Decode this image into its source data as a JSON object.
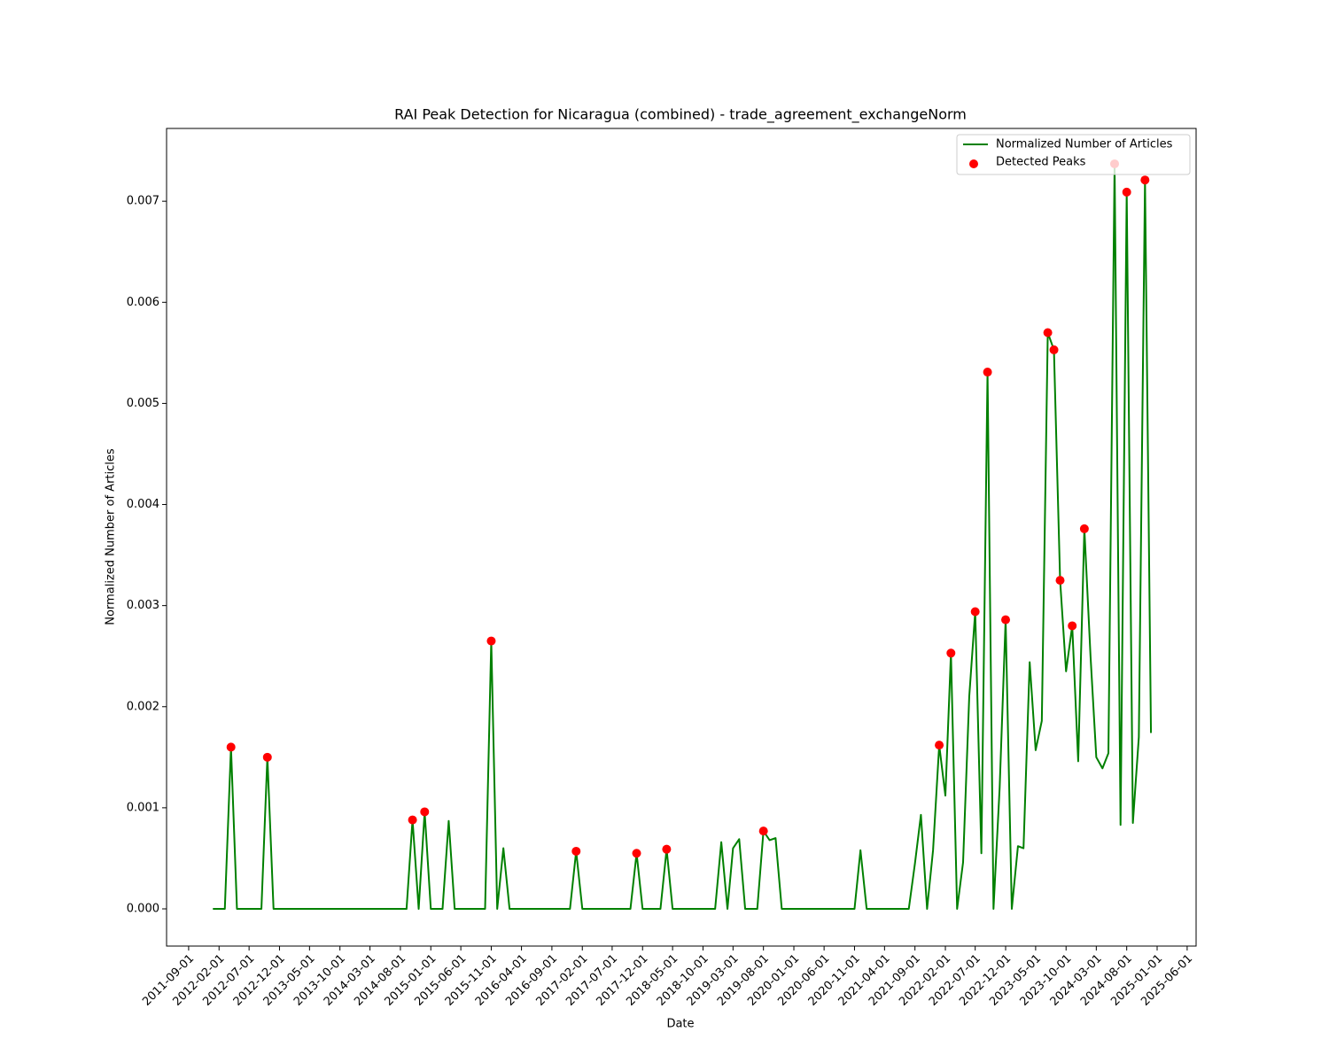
{
  "chart_data": {
    "type": "line",
    "title": "RAI Peak Detection for Nicaragua (combined) - trade_agreement_exchangeNorm",
    "x_label": "Date",
    "y_label": "Normalized Number of Articles",
    "x": [
      "2012-01-01",
      "2012-02-01",
      "2012-03-01",
      "2012-04-01",
      "2012-05-01",
      "2012-06-01",
      "2012-07-01",
      "2012-08-01",
      "2012-09-01",
      "2012-10-01",
      "2012-11-01",
      "2012-12-01",
      "2013-01-01",
      "2013-02-01",
      "2013-03-01",
      "2013-04-01",
      "2013-05-01",
      "2013-06-01",
      "2013-07-01",
      "2013-08-01",
      "2013-09-01",
      "2013-10-01",
      "2013-11-01",
      "2013-12-01",
      "2014-01-01",
      "2014-02-01",
      "2014-03-01",
      "2014-04-01",
      "2014-05-01",
      "2014-06-01",
      "2014-07-01",
      "2014-08-01",
      "2014-09-01",
      "2014-10-01",
      "2014-11-01",
      "2014-12-01",
      "2015-01-01",
      "2015-02-01",
      "2015-03-01",
      "2015-04-01",
      "2015-05-01",
      "2015-06-01",
      "2015-07-01",
      "2015-08-01",
      "2015-09-01",
      "2015-10-01",
      "2015-11-01",
      "2015-12-01",
      "2016-01-01",
      "2016-02-01",
      "2016-03-01",
      "2016-04-01",
      "2016-05-01",
      "2016-06-01",
      "2016-07-01",
      "2016-08-01",
      "2016-09-01",
      "2016-10-01",
      "2016-11-01",
      "2016-12-01",
      "2017-01-01",
      "2017-02-01",
      "2017-03-01",
      "2017-04-01",
      "2017-05-01",
      "2017-06-01",
      "2017-07-01",
      "2017-08-01",
      "2017-09-01",
      "2017-10-01",
      "2017-11-01",
      "2017-12-01",
      "2018-01-01",
      "2018-02-01",
      "2018-03-01",
      "2018-04-01",
      "2018-05-01",
      "2018-06-01",
      "2018-07-01",
      "2018-08-01",
      "2018-09-01",
      "2018-10-01",
      "2018-11-01",
      "2018-12-01",
      "2019-01-01",
      "2019-02-01",
      "2019-03-01",
      "2019-04-01",
      "2019-05-01",
      "2019-06-01",
      "2019-07-01",
      "2019-08-01",
      "2019-09-01",
      "2019-10-01",
      "2019-11-01",
      "2019-12-01",
      "2020-01-01",
      "2020-02-01",
      "2020-03-01",
      "2020-04-01",
      "2020-05-01",
      "2020-06-01",
      "2020-07-01",
      "2020-08-01",
      "2020-09-01",
      "2020-10-01",
      "2020-11-01",
      "2020-12-01",
      "2021-01-01",
      "2021-02-01",
      "2021-03-01",
      "2021-04-01",
      "2021-05-01",
      "2021-06-01",
      "2021-07-01",
      "2021-08-01",
      "2021-09-01",
      "2021-10-01",
      "2021-11-01",
      "2021-12-01",
      "2022-01-01",
      "2022-02-01",
      "2022-03-01",
      "2022-04-01",
      "2022-05-01",
      "2022-06-01",
      "2022-07-01",
      "2022-08-01",
      "2022-09-01",
      "2022-10-01",
      "2022-11-01",
      "2022-12-01",
      "2023-01-01",
      "2023-02-01",
      "2023-03-01",
      "2023-04-01",
      "2023-05-01",
      "2023-06-01",
      "2023-07-01",
      "2023-08-01",
      "2023-09-01",
      "2023-10-01",
      "2023-11-01",
      "2023-12-01",
      "2024-01-01",
      "2024-02-01",
      "2024-03-01",
      "2024-04-01",
      "2024-05-01",
      "2024-06-01",
      "2024-07-01",
      "2024-08-01",
      "2024-09-01",
      "2024-10-01",
      "2024-11-01",
      "2024-12-01"
    ],
    "series": [
      {
        "name": "Normalized Number of Articles",
        "type": "line",
        "color": "#008000",
        "values": [
          0,
          0,
          0,
          0.0016,
          0,
          0,
          0,
          0,
          0,
          0.0015,
          0,
          0,
          0,
          0,
          0,
          0,
          0,
          0,
          0,
          0,
          0,
          0,
          0,
          0,
          0,
          0,
          0,
          0,
          0,
          0,
          0,
          0,
          0,
          0.00088,
          0,
          0.00096,
          0,
          0,
          0,
          0.00087,
          0,
          0,
          0,
          0,
          0,
          0,
          0.00265,
          0,
          0.0006,
          0,
          0,
          0,
          0,
          0,
          0,
          0,
          0,
          0,
          0,
          0,
          0.00057,
          0,
          0,
          0,
          0,
          0,
          0,
          0,
          0,
          0,
          0.00055,
          0,
          0,
          0,
          0,
          0.00059,
          0,
          0,
          0,
          0,
          0,
          0,
          0,
          0,
          0.00066,
          0,
          0.0006,
          0.00069,
          0,
          0,
          0,
          0.00077,
          0.00068,
          0.0007,
          0,
          0,
          0,
          0,
          0,
          0,
          0,
          0,
          0,
          0,
          0,
          0,
          0,
          0.00058,
          0,
          0,
          0,
          0,
          0,
          0,
          0,
          0,
          0.00045,
          0.00093,
          0,
          0.00058,
          0.00162,
          0.00112,
          0.00253,
          0,
          0.00046,
          0.0021,
          0.00294,
          0.00055,
          0.00531,
          0,
          0.0012,
          0.00286,
          0,
          0.00062,
          0.0006,
          0.00244,
          0.00157,
          0.00186,
          0.0057,
          0.00553,
          0.00325,
          0.00235,
          0.0028,
          0.00146,
          0.00376,
          0.0025,
          0.0015,
          0.00139,
          0.00154,
          0.00737,
          0.00083,
          0.00709,
          0.00085,
          0.0017,
          0.00721,
          0.00174
        ]
      },
      {
        "name": "Detected Peaks",
        "type": "scatter",
        "color": "#ff0000",
        "x": [
          "2012-04-01",
          "2012-10-01",
          "2014-10-01",
          "2014-12-01",
          "2015-11-01",
          "2017-01-01",
          "2017-11-01",
          "2018-04-01",
          "2019-08-01",
          "2022-01-01",
          "2022-03-01",
          "2022-07-01",
          "2022-09-01",
          "2022-12-01",
          "2023-07-01",
          "2023-08-01",
          "2023-09-01",
          "2023-11-01",
          "2024-01-01",
          "2024-06-01",
          "2024-08-01",
          "2024-11-01"
        ],
        "values": [
          0.0016,
          0.0015,
          0.00088,
          0.00096,
          0.00265,
          0.00057,
          0.00055,
          0.00059,
          0.00077,
          0.00162,
          0.00253,
          0.00294,
          0.00531,
          0.00286,
          0.0057,
          0.00553,
          0.00325,
          0.0028,
          0.00376,
          0.00737,
          0.00709,
          0.00721
        ]
      }
    ],
    "xlim": [
      "2011-05-13",
      "2025-07-16"
    ],
    "xticks": [
      "2011-09-01",
      "2012-02-01",
      "2012-07-01",
      "2012-12-01",
      "2013-05-01",
      "2013-10-01",
      "2014-03-01",
      "2014-08-01",
      "2015-01-01",
      "2015-06-01",
      "2015-11-01",
      "2016-04-01",
      "2016-09-01",
      "2017-02-01",
      "2017-07-01",
      "2017-12-01",
      "2018-05-01",
      "2018-10-01",
      "2019-03-01",
      "2019-08-01",
      "2020-01-01",
      "2020-06-01",
      "2020-11-01",
      "2021-04-01",
      "2021-09-01",
      "2022-02-01",
      "2022-07-01",
      "2022-12-01",
      "2023-05-01",
      "2023-10-01",
      "2024-03-01",
      "2024-08-01",
      "2025-01-01",
      "2025-06-01"
    ],
    "ylim": [
      -0.000368,
      0.00772
    ],
    "yticks": [
      {
        "value": 0,
        "label": "0.000"
      },
      {
        "value": 0.001,
        "label": "0.001"
      },
      {
        "value": 0.002,
        "label": "0.002"
      },
      {
        "value": 0.003,
        "label": "0.003"
      },
      {
        "value": 0.004,
        "label": "0.004"
      },
      {
        "value": 0.005,
        "label": "0.005"
      },
      {
        "value": 0.006,
        "label": "0.006"
      },
      {
        "value": 0.007,
        "label": "0.007"
      }
    ],
    "grid": false,
    "legend": "upper right"
  }
}
